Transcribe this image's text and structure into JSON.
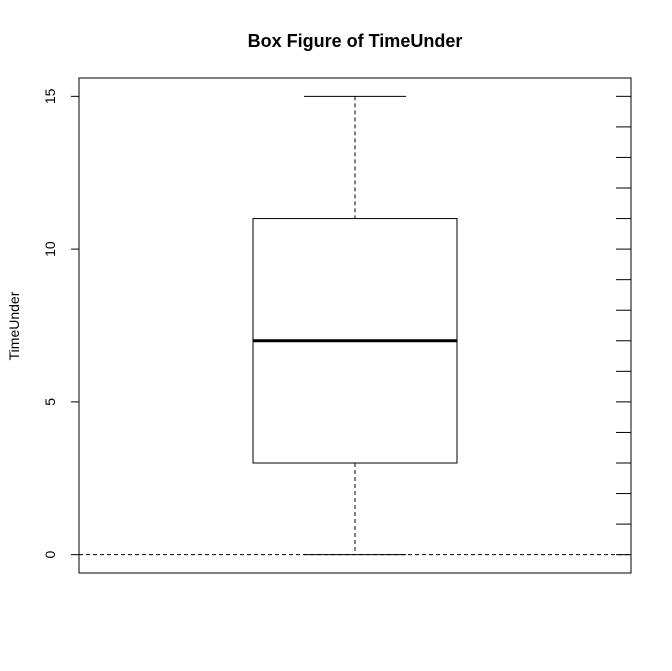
{
  "chart_data": {
    "type": "box",
    "title": "Box Figure of TimeUnder",
    "xlabel": "",
    "ylabel": "TimeUnder",
    "ylim": [
      -0.6,
      15.6
    ],
    "yticks": [
      0,
      5,
      10,
      15
    ],
    "box": {
      "min": 0,
      "q1": 3,
      "median": 7,
      "q3": 11,
      "max": 15
    },
    "reference_line": 0,
    "right_ticks": [
      0,
      1,
      2,
      3,
      4,
      5,
      6,
      7,
      8,
      9,
      10,
      11,
      12,
      13,
      14,
      15
    ]
  }
}
